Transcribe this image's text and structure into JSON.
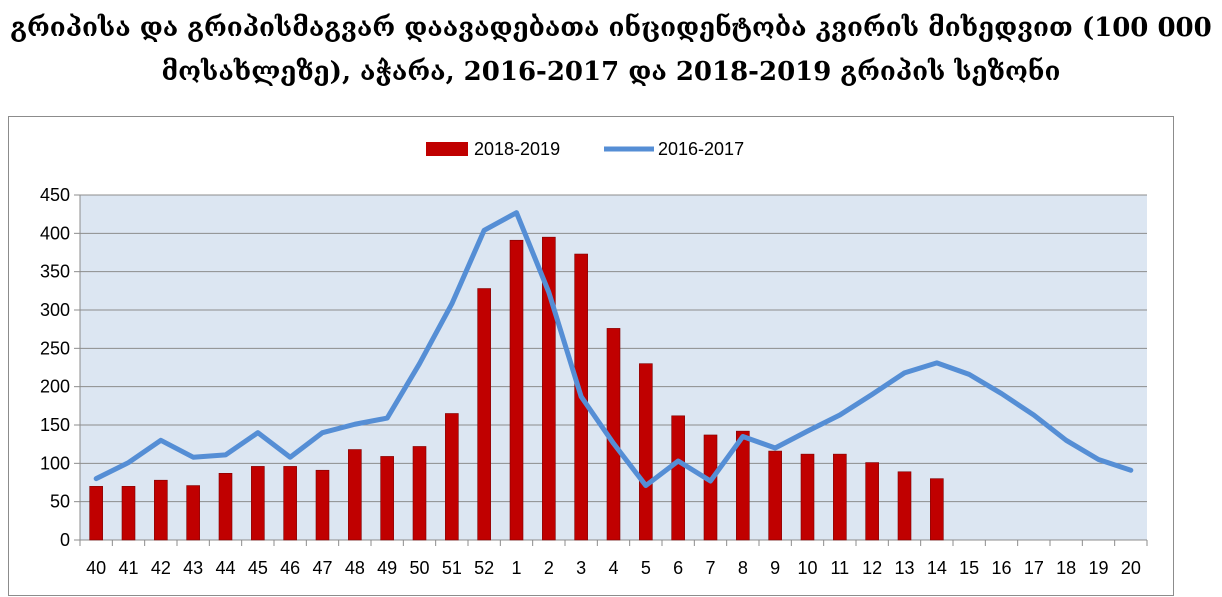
{
  "chart_data": {
    "type": "bar",
    "title": "გრიპისა და გრიპისმაგვარ დაავადებათა ინციდენტობა კვირის მიხედვით (100 000 მოსახლეზე), აჭარა, 2016-2017 და 2018-2019 გრიპის სეზონი",
    "title_lines": [
      "გრიპისა და გრიპისმაგვარ დაავადებათა ინციდენტობა კვირის მიხედვით (100 000",
      "მოსახლეზე), აჭარა, 2016-2017 და 2018-2019 გრიპის სეზონი"
    ],
    "categories": [
      "40",
      "41",
      "42",
      "43",
      "44",
      "45",
      "46",
      "47",
      "48",
      "49",
      "50",
      "51",
      "52",
      "1",
      "2",
      "3",
      "4",
      "5",
      "6",
      "7",
      "8",
      "9",
      "10",
      "11",
      "12",
      "13",
      "14",
      "15",
      "16",
      "17",
      "18",
      "19",
      "20"
    ],
    "ylim": [
      0,
      450
    ],
    "yticks": [
      "0",
      "50",
      "100",
      "150",
      "200",
      "250",
      "300",
      "350",
      "400",
      "450"
    ],
    "grid": true,
    "legend_position": "top-center",
    "series": [
      {
        "name": "2018-2019",
        "type": "bar",
        "color": "#c00000",
        "values": [
          70,
          70,
          78,
          71,
          87,
          96,
          96,
          91,
          118,
          109,
          122,
          165,
          328,
          391,
          395,
          373,
          276,
          230,
          162,
          137,
          142,
          116,
          112,
          112,
          101,
          89,
          80,
          null,
          null,
          null,
          null,
          null,
          null
        ]
      },
      {
        "name": "2016-2017",
        "type": "line",
        "color": "#558ed5",
        "values": [
          80,
          101,
          130,
          108,
          111,
          140,
          108,
          140,
          151,
          159,
          230,
          308,
          404,
          427,
          323,
          187,
          126,
          71,
          103,
          77,
          135,
          120,
          142,
          163,
          190,
          218,
          231,
          216,
          191,
          163,
          130,
          105,
          91
        ]
      }
    ]
  }
}
